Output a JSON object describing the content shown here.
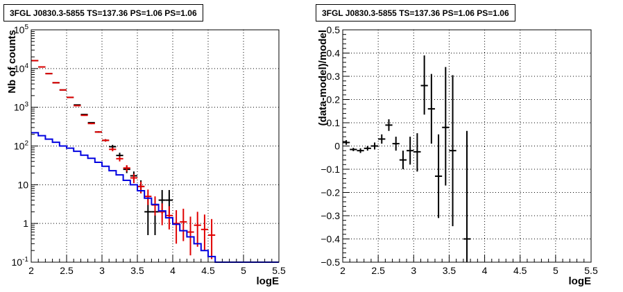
{
  "chart_data": [
    {
      "type": "histogram",
      "title": "3FGL J0830.3-5855 TS=137.36 PS=1.06 PS=1.06",
      "xlabel": "logE",
      "ylabel": "Nb of counts",
      "xlim": [
        2,
        5.5
      ],
      "ylim": [
        0.1,
        100000
      ],
      "yscale": "log",
      "grid": true,
      "x_ticks": [
        "2",
        "2.5",
        "3",
        "3.5",
        "4",
        "4.5",
        "5",
        "5.5"
      ],
      "y_ticks": [
        "10^{-1}",
        "1",
        "10",
        "10^{2}",
        "10^{3}",
        "10^{4}",
        "10^{5}"
      ],
      "series": [
        {
          "kind": "points",
          "color": "#000000",
          "x": [
            2.05,
            2.15,
            2.25,
            2.35,
            2.45,
            2.55,
            2.65,
            2.75,
            2.85,
            2.95,
            3.05,
            3.15,
            3.25,
            3.35,
            3.45,
            3.55,
            3.65,
            3.75,
            3.85,
            3.95
          ],
          "y": [
            16000,
            11000,
            7400,
            4300,
            2800,
            1800,
            1150,
            650,
            400,
            230,
            140,
            96,
            57,
            25,
            17,
            9,
            2,
            2,
            4,
            4
          ],
          "ylow": [
            15800,
            10850,
            7300,
            4250,
            2750,
            1760,
            1120,
            630,
            385,
            220,
            130,
            85,
            48,
            20,
            13,
            6,
            0.5,
            0.5,
            1.8,
            1.8
          ],
          "yhigh": [
            16200,
            11150,
            7500,
            4350,
            2850,
            1840,
            1180,
            670,
            415,
            240,
            150,
            107,
            67,
            31,
            22,
            13,
            4.6,
            4.6,
            7.3,
            7.3
          ]
        },
        {
          "kind": "points",
          "color": "#e00000",
          "x": [
            2.05,
            2.15,
            2.25,
            2.35,
            2.45,
            2.55,
            2.65,
            2.75,
            2.85,
            2.95,
            3.05,
            3.15,
            3.25,
            3.35,
            3.45,
            3.55,
            3.65,
            3.75,
            3.85,
            3.95,
            4.05,
            4.15,
            4.25,
            4.35,
            4.45,
            4.55
          ],
          "y": [
            16000,
            11000,
            7400,
            4300,
            2800,
            1800,
            1100,
            620,
            380,
            230,
            140,
            82,
            47,
            27,
            15,
            9,
            5,
            3,
            2,
            1.6,
            1,
            1.1,
            0.6,
            0.9,
            0.7,
            0.5
          ],
          "ylow": [
            15800,
            10850,
            7300,
            4250,
            2750,
            1760,
            1070,
            600,
            365,
            220,
            130,
            73,
            40,
            22,
            11,
            6,
            3,
            1.6,
            0.9,
            0.7,
            0.3,
            0.35,
            0.15,
            0.25,
            0.2,
            0.12
          ],
          "yhigh": [
            16200,
            11150,
            7500,
            4350,
            2850,
            1840,
            1130,
            640,
            395,
            240,
            150,
            91,
            54,
            32,
            19,
            12,
            7.5,
            5,
            3.3,
            2.8,
            2.2,
            2.4,
            1.5,
            2,
            1.7,
            1.3
          ]
        },
        {
          "kind": "step",
          "color": "#0000e0",
          "edges": [
            2.0,
            2.1,
            2.2,
            2.3,
            2.4,
            2.5,
            2.6,
            2.7,
            2.8,
            2.9,
            3.0,
            3.1,
            3.2,
            3.3,
            3.4,
            3.5,
            3.6,
            3.7,
            3.8,
            3.9,
            4.0,
            4.1,
            4.2,
            4.3,
            4.4,
            4.5,
            4.6,
            4.7,
            4.8,
            4.9,
            5.0,
            5.1,
            5.2,
            5.3,
            5.4,
            5.5
          ],
          "values": [
            220,
            185,
            150,
            125,
            100,
            88,
            73,
            58,
            48,
            38,
            30,
            23,
            18,
            13,
            10,
            7,
            4.5,
            3.1,
            2.1,
            1.4,
            0.95,
            0.65,
            0.45,
            0.3,
            0.2,
            0.14,
            0.1,
            0.1,
            0.1,
            0.1,
            0.1,
            0.1,
            0.1,
            0.1,
            0.1
          ]
        }
      ]
    },
    {
      "type": "scatter",
      "title": "3FGL J0830.3-5855 TS=137.36 PS=1.06 PS=1.06",
      "xlabel": "logE",
      "ylabel": "(data-model)/model",
      "xlim": [
        2,
        5.5
      ],
      "ylim": [
        -0.5,
        0.5
      ],
      "grid": true,
      "x_ticks": [
        "2",
        "2.5",
        "3",
        "3.5",
        "4",
        "4.5",
        "5",
        "5.5"
      ],
      "y_ticks": [
        "−0.5",
        "−0.4",
        "−0.3",
        "−0.2",
        "−0.1",
        "0",
        "0.1",
        "0.2",
        "0.3",
        "0.4",
        "0.5"
      ],
      "series": [
        {
          "kind": "points",
          "color": "#000000",
          "x": [
            2.05,
            2.15,
            2.25,
            2.35,
            2.45,
            2.55,
            2.65,
            2.75,
            2.85,
            2.95,
            3.05,
            3.15,
            3.25,
            3.35,
            3.45,
            3.55,
            3.75
          ],
          "y": [
            0.015,
            -0.015,
            -0.02,
            -0.01,
            0.0,
            0.03,
            0.09,
            0.01,
            -0.06,
            -0.02,
            -0.025,
            0.26,
            0.16,
            -0.13,
            0.08,
            -0.02,
            -0.4
          ],
          "ylow": [
            0.005,
            -0.022,
            -0.03,
            -0.02,
            -0.015,
            0.01,
            0.065,
            -0.02,
            -0.1,
            -0.08,
            -0.11,
            0.135,
            0.01,
            -0.31,
            -0.17,
            -0.345,
            -0.5
          ],
          "yhigh": [
            0.025,
            -0.008,
            -0.01,
            0.0,
            0.015,
            0.05,
            0.115,
            0.04,
            -0.02,
            0.04,
            0.055,
            0.39,
            0.31,
            0.05,
            0.34,
            0.305,
            0.065
          ]
        }
      ]
    }
  ]
}
